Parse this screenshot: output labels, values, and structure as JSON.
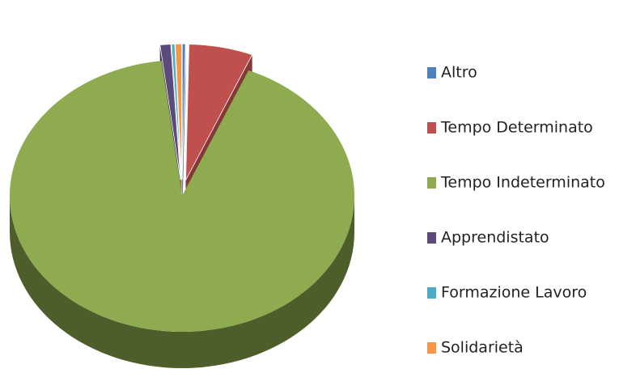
{
  "chart_data": {
    "type": "pie",
    "three_d": true,
    "categories": [
      "Altro",
      "Tempo Determinato",
      "Tempo Indeterminato",
      "Apprendistato",
      "Formazione Lavoro",
      "Solidarietà"
    ],
    "values": [
      0.3,
      6,
      91.8,
      1,
      0.3,
      0.6
    ],
    "colors": [
      "#4f81bd",
      "#c0504d",
      "#8eab4f",
      "#5b4a7a",
      "#4bacc6",
      "#f79646"
    ],
    "exploded": [
      true,
      true,
      false,
      true,
      true,
      true
    ],
    "legend": "right"
  }
}
